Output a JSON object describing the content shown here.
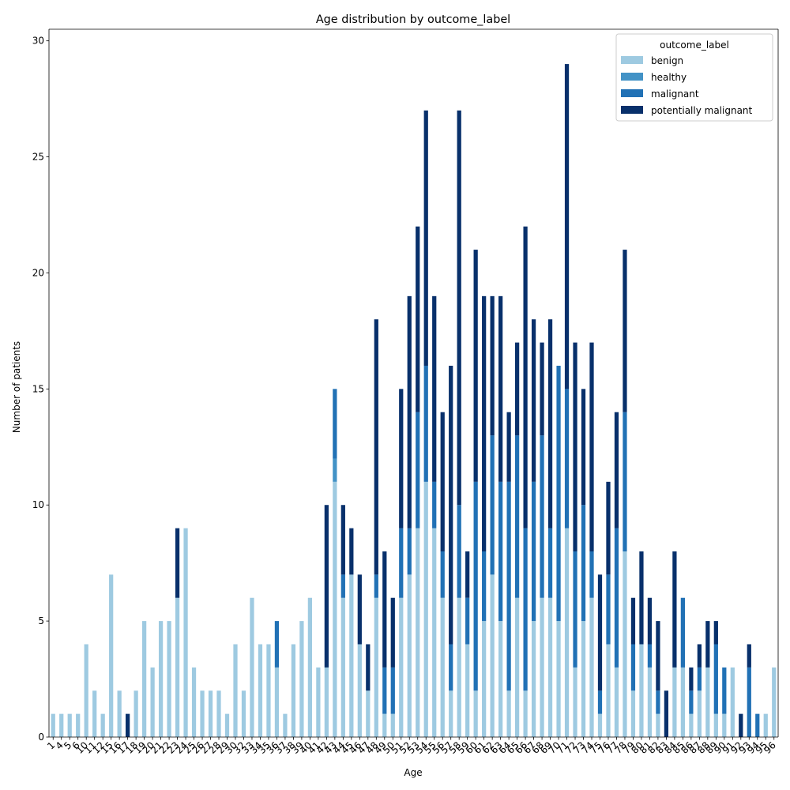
{
  "chart_data": {
    "type": "bar",
    "stacked": true,
    "title": "Age distribution by outcome_label",
    "xlabel": "Age",
    "ylabel": "Number of patients",
    "ylim": [
      0,
      30.5
    ],
    "yticks": [
      0,
      5,
      10,
      15,
      20,
      25,
      30
    ],
    "grid": false,
    "legend": {
      "title": "outcome_label",
      "placement": "top-right"
    },
    "categories": [
      "1",
      "4",
      "5",
      "6",
      "10",
      "11",
      "12",
      "15",
      "16",
      "17",
      "18",
      "19",
      "20",
      "21",
      "22",
      "23",
      "24",
      "25",
      "26",
      "27",
      "28",
      "29",
      "30",
      "32",
      "33",
      "34",
      "35",
      "36",
      "37",
      "38",
      "39",
      "40",
      "41",
      "42",
      "43",
      "44",
      "45",
      "46",
      "47",
      "48",
      "49",
      "50",
      "51",
      "52",
      "53",
      "54",
      "55",
      "56",
      "57",
      "58",
      "59",
      "60",
      "61",
      "62",
      "63",
      "64",
      "65",
      "66",
      "67",
      "68",
      "69",
      "70",
      "71",
      "72",
      "73",
      "74",
      "75",
      "76",
      "77",
      "78",
      "79",
      "80",
      "81",
      "82",
      "83",
      "84",
      "85",
      "86",
      "87",
      "88",
      "89",
      "90",
      "91",
      "92",
      "93",
      "94",
      "95",
      "96"
    ],
    "series": [
      {
        "name": "benign",
        "color": "#9ecae1",
        "values": [
          1,
          1,
          1,
          1,
          4,
          2,
          1,
          7,
          2,
          0,
          2,
          5,
          3,
          5,
          5,
          6,
          9,
          3,
          2,
          2,
          2,
          1,
          4,
          2,
          6,
          4,
          4,
          3,
          1,
          4,
          5,
          6,
          3,
          3,
          11,
          6,
          7,
          4,
          2,
          6,
          1,
          1,
          6,
          7,
          9,
          11,
          9,
          6,
          2,
          6,
          4,
          2,
          5,
          7,
          5,
          2,
          6,
          2,
          5,
          6,
          6,
          5,
          9,
          3,
          5,
          6,
          1,
          4,
          3,
          8,
          2,
          4,
          3,
          1,
          0,
          3,
          3,
          1,
          2,
          3,
          1,
          1,
          3,
          0,
          0,
          0,
          1,
          3
        ]
      },
      {
        "name": "healthy",
        "color": "#4292c6",
        "values": [
          0,
          0,
          0,
          0,
          0,
          0,
          0,
          0,
          0,
          0,
          0,
          0,
          0,
          0,
          0,
          0,
          0,
          0,
          0,
          0,
          0,
          0,
          0,
          0,
          0,
          0,
          0,
          0,
          0,
          0,
          0,
          0,
          0,
          0,
          1,
          0,
          0,
          0,
          0,
          0,
          0,
          0,
          0,
          0,
          0,
          0,
          0,
          0,
          0,
          0,
          0,
          0,
          0,
          0,
          0,
          0,
          0,
          0,
          0,
          0,
          0,
          0,
          0,
          0,
          0,
          0,
          0,
          0,
          0,
          0,
          0,
          0,
          0,
          0,
          0,
          0,
          0,
          0,
          0,
          0,
          0,
          0,
          0,
          0,
          0,
          0,
          0,
          0
        ]
      },
      {
        "name": "malignant",
        "color": "#2171b5",
        "values": [
          0,
          0,
          0,
          0,
          0,
          0,
          0,
          0,
          0,
          0,
          0,
          0,
          0,
          0,
          0,
          0,
          0,
          0,
          0,
          0,
          0,
          0,
          0,
          0,
          0,
          0,
          0,
          2,
          0,
          0,
          0,
          0,
          0,
          0,
          3,
          1,
          0,
          0,
          0,
          1,
          2,
          2,
          3,
          2,
          5,
          5,
          2,
          2,
          2,
          4,
          2,
          9,
          3,
          6,
          6,
          9,
          7,
          7,
          6,
          7,
          3,
          11,
          6,
          5,
          5,
          2,
          1,
          3,
          6,
          6,
          2,
          0,
          1,
          1,
          0,
          0,
          3,
          1,
          1,
          0,
          3,
          2,
          0,
          0,
          3,
          1,
          0,
          0
        ]
      },
      {
        "name": "potentially malignant",
        "color": "#08306b",
        "values": [
          0,
          0,
          0,
          0,
          0,
          0,
          0,
          0,
          0,
          1,
          0,
          0,
          0,
          0,
          0,
          3,
          0,
          0,
          0,
          0,
          0,
          0,
          0,
          0,
          0,
          0,
          0,
          0,
          0,
          0,
          0,
          0,
          0,
          7,
          0,
          3,
          2,
          3,
          2,
          11,
          5,
          3,
          6,
          10,
          8,
          11,
          8,
          6,
          12,
          17,
          2,
          10,
          11,
          6,
          8,
          3,
          4,
          13,
          7,
          4,
          9,
          0,
          14,
          9,
          5,
          9,
          5,
          4,
          5,
          7,
          2,
          4,
          2,
          3,
          2,
          5,
          0,
          1,
          1,
          2,
          1,
          0,
          0,
          1,
          1,
          0,
          0,
          0
        ]
      }
    ]
  }
}
